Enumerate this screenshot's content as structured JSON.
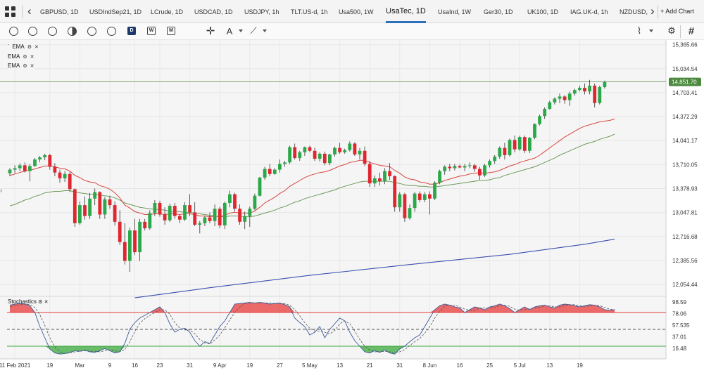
{
  "tabs": [
    {
      "label": "GBPUSD, 1D",
      "active": false
    },
    {
      "label": "USDIndSep21, 1D",
      "active": false
    },
    {
      "label": "LCrude, 1D",
      "active": false
    },
    {
      "label": "USDCAD, 1D",
      "active": false
    },
    {
      "label": "USDJPY, 1h",
      "active": false
    },
    {
      "label": "TLT.US-d, 1h",
      "active": false
    },
    {
      "label": "Usa500, 1W",
      "active": false
    },
    {
      "label": "UsaTec, 1D",
      "active": true
    },
    {
      "label": "UsaInd, 1W",
      "active": false
    },
    {
      "label": "Ger30, 1D",
      "active": false
    },
    {
      "label": "UK100, 1D",
      "active": false
    },
    {
      "label": "IAG.UK-d, 1h",
      "active": false
    },
    {
      "label": "NZDUSD,",
      "active": false
    }
  ],
  "tabbar": {
    "back_icon": "chevron-left-icon",
    "forward_icon": "chevron-right-icon",
    "add_chart_label": "+ Add Chart"
  },
  "toolbar": {
    "icons": [
      "clock-icon",
      "gauge-icon",
      "candles-icon",
      "contrast-icon",
      "columns-icon",
      "circle-icon",
      "daily-icon",
      "weekly-icon",
      "monthly-icon",
      "crosshair-icon",
      "text-tool-icon",
      "drawing-tool-icon",
      "indicator-icon",
      "settings-icon",
      "grid-icon"
    ],
    "daily_letter": "D",
    "weekly_letter": "W",
    "monthly_letter": "M"
  },
  "indicators": {
    "ema_labels": [
      "EMA",
      "EMA",
      "EMA"
    ],
    "stochastics_label": "Stochastics"
  },
  "colors": {
    "bull": "#2ba84a",
    "bear": "#e0262f",
    "ema_fast": "#d9453d",
    "ema_mid": "#6e9a5a",
    "ema_slow": "#3a4fb0",
    "last_price_line": "#4b8a3e",
    "stoch_upper": "#e83a3a",
    "stoch_lower": "#3aa83a",
    "stoch_k": "#3c5b9a",
    "stoch_d": "#555555"
  },
  "chart_data": {
    "type": "candlestick",
    "symbol": "UsaTec",
    "timeframe": "1D",
    "price_axis_ticks": [
      15365.66,
      15034.54,
      14703.41,
      14372.29,
      14041.17,
      13710.05,
      13378.93,
      13047.81,
      12716.68,
      12385.56,
      12054.44
    ],
    "last_price": 14851.7,
    "ylim": [
      11900,
      15430
    ],
    "x_tick_labels": [
      "11 Feb 2021",
      "19",
      "Mar",
      "9",
      "16",
      "23",
      "31",
      "9 Apr",
      "19",
      "27",
      "5 May",
      "13",
      "21",
      "31",
      "8 Jun",
      "16",
      "25",
      "5 Jul",
      "13",
      "19"
    ],
    "x_tick_indices": [
      1,
      8,
      14,
      20,
      25,
      30,
      36,
      42,
      48,
      54,
      60,
      66,
      72,
      78,
      84,
      90,
      96,
      102,
      108,
      114
    ],
    "candles": [
      [
        13590,
        13660,
        13550,
        13640
      ],
      [
        13640,
        13700,
        13590,
        13660
      ],
      [
        13660,
        13730,
        13620,
        13700
      ],
      [
        13700,
        13740,
        13600,
        13620
      ],
      [
        13620,
        13720,
        13480,
        13690
      ],
      [
        13690,
        13800,
        13680,
        13780
      ],
      [
        13780,
        13830,
        13740,
        13810
      ],
      [
        13810,
        13860,
        13770,
        13840
      ],
      [
        13840,
        13860,
        13640,
        13680
      ],
      [
        13680,
        13730,
        13550,
        13600
      ],
      [
        13600,
        13640,
        13460,
        13520
      ],
      [
        13520,
        13620,
        13470,
        13580
      ],
      [
        13580,
        13610,
        13330,
        13370
      ],
      [
        13370,
        13380,
        12850,
        12900
      ],
      [
        12900,
        13200,
        12880,
        13150
      ],
      [
        13150,
        13270,
        12950,
        13000
      ],
      [
        13000,
        13320,
        12960,
        13240
      ],
      [
        13240,
        13380,
        13150,
        13330
      ],
      [
        13330,
        13340,
        12960,
        13020
      ],
      [
        13020,
        13260,
        12960,
        13230
      ],
      [
        13230,
        13280,
        13100,
        13150
      ],
      [
        13150,
        13200,
        12870,
        12920
      ],
      [
        12920,
        13080,
        12600,
        12640
      ],
      [
        12640,
        12900,
        12330,
        12380
      ],
      [
        12380,
        12840,
        12230,
        12800
      ],
      [
        12800,
        12960,
        12460,
        12500
      ],
      [
        12500,
        12960,
        12380,
        12920
      ],
      [
        12920,
        12960,
        12800,
        12830
      ],
      [
        12830,
        13080,
        12810,
        13040
      ],
      [
        13040,
        13220,
        13000,
        13180
      ],
      [
        13180,
        13210,
        12990,
        13020
      ],
      [
        13020,
        13120,
        12880,
        12940
      ],
      [
        12940,
        13170,
        12920,
        13140
      ],
      [
        13140,
        13180,
        12960,
        13000
      ],
      [
        13000,
        13020,
        12900,
        12950
      ],
      [
        12950,
        13190,
        12930,
        13150
      ],
      [
        13150,
        13300,
        13000,
        13050
      ],
      [
        13050,
        13190,
        12860,
        12880
      ],
      [
        12880,
        12930,
        12760,
        12900
      ],
      [
        12900,
        13000,
        12860,
        12980
      ],
      [
        12980,
        13050,
        12900,
        12930
      ],
      [
        12930,
        13160,
        12860,
        13100
      ],
      [
        13100,
        13130,
        12830,
        12870
      ],
      [
        12870,
        13200,
        12820,
        13180
      ],
      [
        13180,
        13350,
        13120,
        13300
      ],
      [
        13300,
        13320,
        13060,
        13100
      ],
      [
        13100,
        13160,
        12880,
        12920
      ],
      [
        12920,
        13060,
        12820,
        13000
      ],
      [
        13000,
        13130,
        12850,
        13100
      ],
      [
        13100,
        13310,
        13080,
        13280
      ],
      [
        13280,
        13540,
        13270,
        13530
      ],
      [
        13530,
        13680,
        13500,
        13650
      ],
      [
        13650,
        13720,
        13550,
        13580
      ],
      [
        13580,
        13660,
        13570,
        13640
      ],
      [
        13640,
        13780,
        13600,
        13720
      ],
      [
        13720,
        13760,
        13680,
        13740
      ],
      [
        13740,
        13970,
        13720,
        13950
      ],
      [
        13950,
        14000,
        13780,
        13800
      ],
      [
        13800,
        13900,
        13760,
        13880
      ],
      [
        13880,
        13960,
        13830,
        13950
      ],
      [
        13950,
        13970,
        13880,
        13900
      ],
      [
        13900,
        13940,
        13760,
        13790
      ],
      [
        13790,
        13880,
        13750,
        13860
      ],
      [
        13860,
        13890,
        13700,
        13730
      ],
      [
        13730,
        13860,
        13700,
        13850
      ],
      [
        13850,
        13960,
        13820,
        13940
      ],
      [
        13940,
        14010,
        13860,
        13880
      ],
      [
        13880,
        13930,
        13860,
        13910
      ],
      [
        13910,
        14030,
        13890,
        14000
      ],
      [
        14000,
        14020,
        13830,
        13850
      ],
      [
        13850,
        13940,
        13780,
        13900
      ],
      [
        13900,
        13960,
        13690,
        13720
      ],
      [
        13720,
        13760,
        13400,
        13450
      ],
      [
        13450,
        13560,
        13400,
        13520
      ],
      [
        13520,
        13600,
        13420,
        13480
      ],
      [
        13480,
        13660,
        13440,
        13620
      ],
      [
        13620,
        13730,
        13500,
        13550
      ],
      [
        13550,
        13560,
        13060,
        13120
      ],
      [
        13120,
        13330,
        13060,
        13300
      ],
      [
        13300,
        13320,
        12920,
        12970
      ],
      [
        12970,
        13160,
        12950,
        13110
      ],
      [
        13110,
        13330,
        13060,
        13310
      ],
      [
        13310,
        13340,
        13190,
        13220
      ],
      [
        13220,
        13330,
        13190,
        13300
      ],
      [
        13300,
        13340,
        13020,
        13240
      ],
      [
        13240,
        13480,
        13220,
        13460
      ],
      [
        13460,
        13640,
        13440,
        13620
      ],
      [
        13620,
        13700,
        13570,
        13680
      ],
      [
        13680,
        13720,
        13620,
        13660
      ],
      [
        13660,
        13720,
        13630,
        13690
      ],
      [
        13690,
        13710,
        13660,
        13670
      ],
      [
        13670,
        13720,
        13620,
        13690
      ],
      [
        13690,
        13740,
        13660,
        13700
      ],
      [
        13700,
        13720,
        13610,
        13650
      ],
      [
        13650,
        13680,
        13500,
        13560
      ],
      [
        13560,
        13720,
        13540,
        13700
      ],
      [
        13700,
        13780,
        13670,
        13760
      ],
      [
        13760,
        13840,
        13720,
        13820
      ],
      [
        13820,
        13960,
        13790,
        13940
      ],
      [
        13940,
        14010,
        13780,
        13840
      ],
      [
        13840,
        14070,
        13820,
        14050
      ],
      [
        14050,
        14110,
        13880,
        13920
      ],
      [
        13920,
        14110,
        13900,
        14090
      ],
      [
        14090,
        14110,
        13870,
        13900
      ],
      [
        13900,
        14090,
        13870,
        14080
      ],
      [
        14080,
        14280,
        14060,
        14270
      ],
      [
        14270,
        14400,
        14250,
        14380
      ],
      [
        14380,
        14500,
        14340,
        14480
      ],
      [
        14480,
        14590,
        14470,
        14570
      ],
      [
        14570,
        14640,
        14540,
        14620
      ],
      [
        14620,
        14690,
        14560,
        14650
      ],
      [
        14650,
        14670,
        14550,
        14600
      ],
      [
        14600,
        14720,
        14520,
        14690
      ],
      [
        14690,
        14760,
        14660,
        14740
      ],
      [
        14740,
        14800,
        14720,
        14770
      ],
      [
        14770,
        14830,
        14680,
        14720
      ],
      [
        14720,
        14880,
        14680,
        14800
      ],
      [
        14800,
        14830,
        14500,
        14560
      ],
      [
        14560,
        14800,
        14540,
        14780
      ],
      [
        14780,
        14870,
        14760,
        14851.7
      ]
    ],
    "ema_fast": [
      13560,
      13580,
      13600,
      13620,
      13630,
      13650,
      13670,
      13690,
      13690,
      13680,
      13660,
      13650,
      13620,
      13560,
      13530,
      13490,
      13470,
      13460,
      13420,
      13400,
      13370,
      13320,
      13250,
      13150,
      13110,
      13060,
      13040,
      13020,
      13020,
      13030,
      13030,
      13020,
      13030,
      13030,
      13020,
      13030,
      13030,
      13020,
      13000,
      13000,
      12990,
      13000,
      12990,
      13010,
      13040,
      13050,
      13040,
      13040,
      13040,
      13070,
      13120,
      13180,
      13220,
      13260,
      13310,
      13350,
      13410,
      13450,
      13490,
      13530,
      13560,
      13580,
      13600,
      13610,
      13630,
      13660,
      13690,
      13710,
      13740,
      13750,
      13770,
      13770,
      13740,
      13720,
      13700,
      13690,
      13680,
      13630,
      13590,
      13540,
      13510,
      13500,
      13470,
      13460,
      13440,
      13440,
      13460,
      13490,
      13510,
      13530,
      13550,
      13560,
      13580,
      13590,
      13600,
      13590,
      13600,
      13610,
      13630,
      13660,
      13690,
      13710,
      13740,
      13760,
      13780,
      13800,
      13840,
      13890,
      13940,
      13990,
      14040,
      14090,
      14130,
      14170,
      14210,
      14240,
      14260,
      14280,
      14300,
      14310,
      14320,
      14340
    ],
    "ema_mid": [
      13140,
      13160,
      13190,
      13220,
      13240,
      13270,
      13290,
      13320,
      13330,
      13340,
      13340,
      13350,
      13350,
      13330,
      13320,
      13310,
      13300,
      13300,
      13290,
      13280,
      13270,
      13250,
      13220,
      13180,
      13160,
      13140,
      13120,
      13110,
      13100,
      13090,
      13090,
      13080,
      13070,
      13060,
      13060,
      13050,
      13050,
      13040,
      13030,
      13020,
      13010,
      13000,
      12990,
      12990,
      13000,
      13000,
      13000,
      12990,
      12990,
      13000,
      13020,
      13040,
      13060,
      13080,
      13110,
      13130,
      13160,
      13190,
      13210,
      13240,
      13260,
      13280,
      13300,
      13320,
      13340,
      13360,
      13390,
      13410,
      13430,
      13450,
      13470,
      13480,
      13480,
      13480,
      13480,
      13480,
      13480,
      13460,
      13450,
      13430,
      13420,
      13420,
      13410,
      13410,
      13400,
      13400,
      13410,
      13420,
      13430,
      13440,
      13450,
      13460,
      13470,
      13480,
      13490,
      13490,
      13500,
      13520,
      13530,
      13560,
      13580,
      13600,
      13620,
      13640,
      13660,
      13680,
      13710,
      13740,
      13770,
      13800,
      13840,
      13870,
      13900,
      13930,
      13960,
      13990,
      14010,
      14030,
      14060,
      14080,
      14100,
      14130
    ],
    "ema_slow_points": [
      [
        25,
        11870
      ],
      [
        40,
        12010
      ],
      [
        60,
        12180
      ],
      [
        80,
        12330
      ],
      [
        100,
        12470
      ],
      [
        115,
        12610
      ],
      [
        121,
        12680
      ]
    ],
    "stochastics": {
      "levels": [
        98.59,
        78.06,
        57.535,
        37.005,
        16.48
      ],
      "upper_band": 80,
      "lower_band": 20,
      "k": [
        93,
        95,
        96,
        95,
        92,
        80,
        55,
        35,
        15,
        8,
        6,
        7,
        9,
        12,
        11,
        13,
        10,
        9,
        12,
        16,
        12,
        8,
        10,
        25,
        50,
        62,
        70,
        75,
        80,
        85,
        90,
        80,
        60,
        45,
        50,
        52,
        45,
        30,
        20,
        28,
        25,
        40,
        55,
        65,
        80,
        95,
        96,
        97,
        98,
        97,
        98,
        97,
        95,
        96,
        97,
        94,
        90,
        70,
        62,
        55,
        40,
        45,
        55,
        35,
        50,
        60,
        70,
        65,
        45,
        30,
        20,
        10,
        8,
        12,
        9,
        13,
        8,
        6,
        15,
        20,
        28,
        35,
        40,
        55,
        70,
        85,
        92,
        95,
        93,
        90,
        88,
        80,
        85,
        90,
        88,
        85,
        90,
        92,
        95,
        92,
        87,
        80,
        85,
        90,
        85,
        90,
        92,
        93,
        90,
        88,
        93,
        95,
        94,
        92,
        90,
        92,
        94,
        93,
        90,
        85,
        84,
        85
      ],
      "d": [
        90,
        92,
        94,
        95,
        94,
        89,
        76,
        57,
        35,
        19,
        10,
        7,
        8,
        10,
        11,
        12,
        11,
        11,
        10,
        12,
        13,
        12,
        10,
        14,
        28,
        46,
        61,
        69,
        75,
        80,
        85,
        85,
        77,
        62,
        52,
        49,
        49,
        42,
        32,
        26,
        24,
        31,
        40,
        53,
        67,
        80,
        90,
        96,
        97,
        97,
        97,
        97,
        97,
        96,
        96,
        96,
        93,
        85,
        74,
        62,
        52,
        47,
        47,
        45,
        42,
        48,
        60,
        65,
        60,
        47,
        32,
        20,
        13,
        10,
        10,
        11,
        10,
        9,
        10,
        14,
        21,
        28,
        34,
        43,
        55,
        70,
        82,
        91,
        93,
        93,
        90,
        86,
        84,
        84,
        88,
        88,
        88,
        89,
        92,
        93,
        91,
        86,
        84,
        85,
        87,
        88,
        89,
        92,
        92,
        90,
        90,
        92,
        94,
        94,
        92,
        91,
        92,
        93,
        92,
        89,
        86,
        85
      ]
    }
  }
}
